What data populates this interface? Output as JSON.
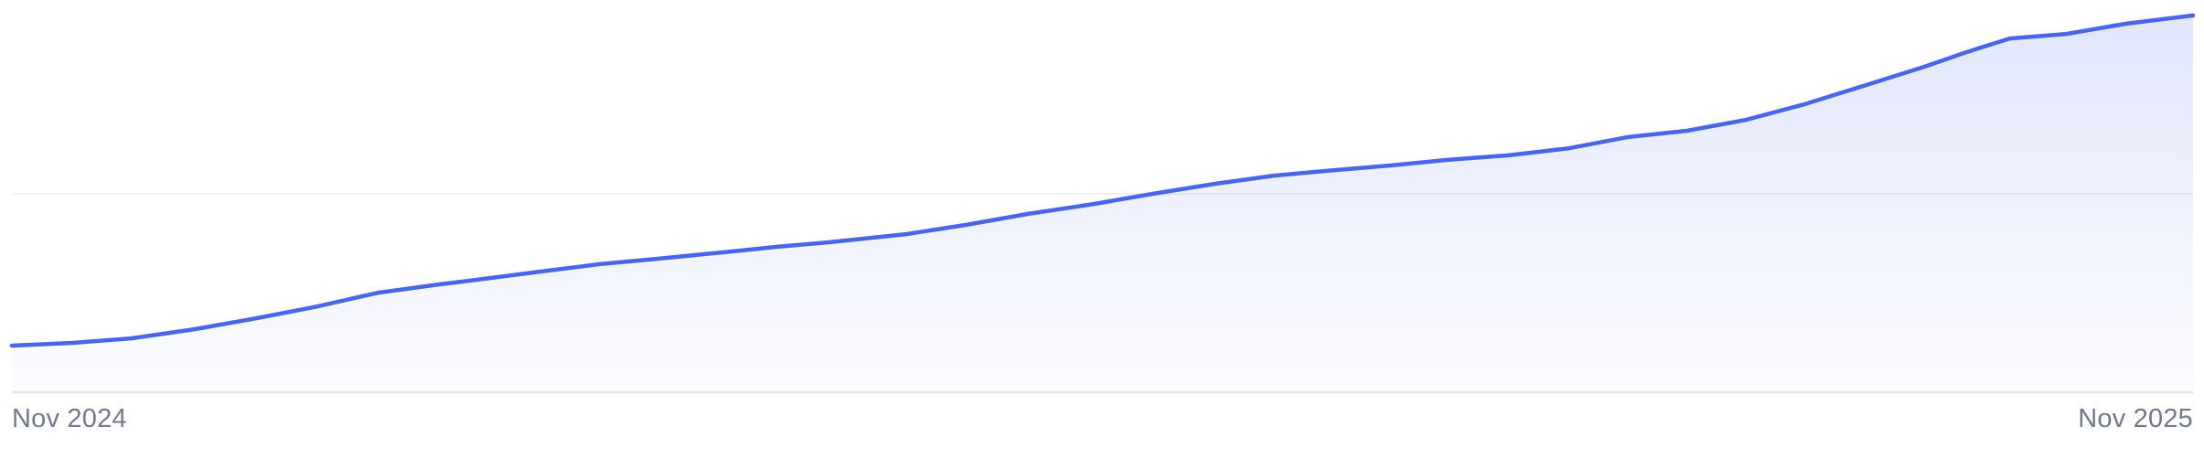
{
  "chart_data": {
    "type": "area",
    "title": "",
    "xlabel": "",
    "ylabel": "",
    "legend": "none",
    "x_axis": {
      "start_label": "Nov 2024",
      "end_label": "Nov 2025",
      "tick_labels_visible": [
        "Nov 2024",
        "Nov 2025"
      ]
    },
    "y_axis": {
      "tick_labels_visible": [],
      "baseline_value": 0,
      "gridline_value": 1,
      "top_value": 1.98,
      "grid": "single horizontal gridline at value 1 plus bottom axis line"
    },
    "series": [
      {
        "name": "trend",
        "points_note": "x = fraction of timeline Nov 2024 -> Nov 2025, y = value in gridline units (gridline = 1.0)",
        "points": [
          [
            0.0,
            0.235
          ],
          [
            0.028,
            0.249
          ],
          [
            0.055,
            0.272
          ],
          [
            0.084,
            0.318
          ],
          [
            0.112,
            0.373
          ],
          [
            0.139,
            0.43
          ],
          [
            0.168,
            0.502
          ],
          [
            0.196,
            0.544
          ],
          [
            0.213,
            0.567
          ],
          [
            0.242,
            0.608
          ],
          [
            0.269,
            0.645
          ],
          [
            0.296,
            0.673
          ],
          [
            0.326,
            0.705
          ],
          [
            0.351,
            0.733
          ],
          [
            0.375,
            0.756
          ],
          [
            0.41,
            0.797
          ],
          [
            0.437,
            0.843
          ],
          [
            0.466,
            0.899
          ],
          [
            0.496,
            0.949
          ],
          [
            0.523,
            1.0
          ],
          [
            0.552,
            1.051
          ],
          [
            0.579,
            1.092
          ],
          [
            0.602,
            1.115
          ],
          [
            0.632,
            1.143
          ],
          [
            0.658,
            1.171
          ],
          [
            0.686,
            1.194
          ],
          [
            0.714,
            1.23
          ],
          [
            0.741,
            1.286
          ],
          [
            0.768,
            1.318
          ],
          [
            0.795,
            1.373
          ],
          [
            0.822,
            1.452
          ],
          [
            0.85,
            1.548
          ],
          [
            0.877,
            1.641
          ],
          [
            0.896,
            1.714
          ],
          [
            0.916,
            1.783
          ],
          [
            0.942,
            1.806
          ],
          [
            0.969,
            1.857
          ],
          [
            1.0,
            1.899
          ]
        ]
      }
    ],
    "colors": {
      "line": "#4966e8",
      "fill_top": "rgba(73,102,232,0.17)",
      "fill_bottom": "rgba(73,102,232,0.02)",
      "gridline": "#f0f1f4",
      "axis_line": "#e3e5ea",
      "label_text": "#71798a",
      "background": "#ffffff"
    }
  },
  "labels": {
    "start": "Nov 2024",
    "end": "Nov 2025"
  }
}
